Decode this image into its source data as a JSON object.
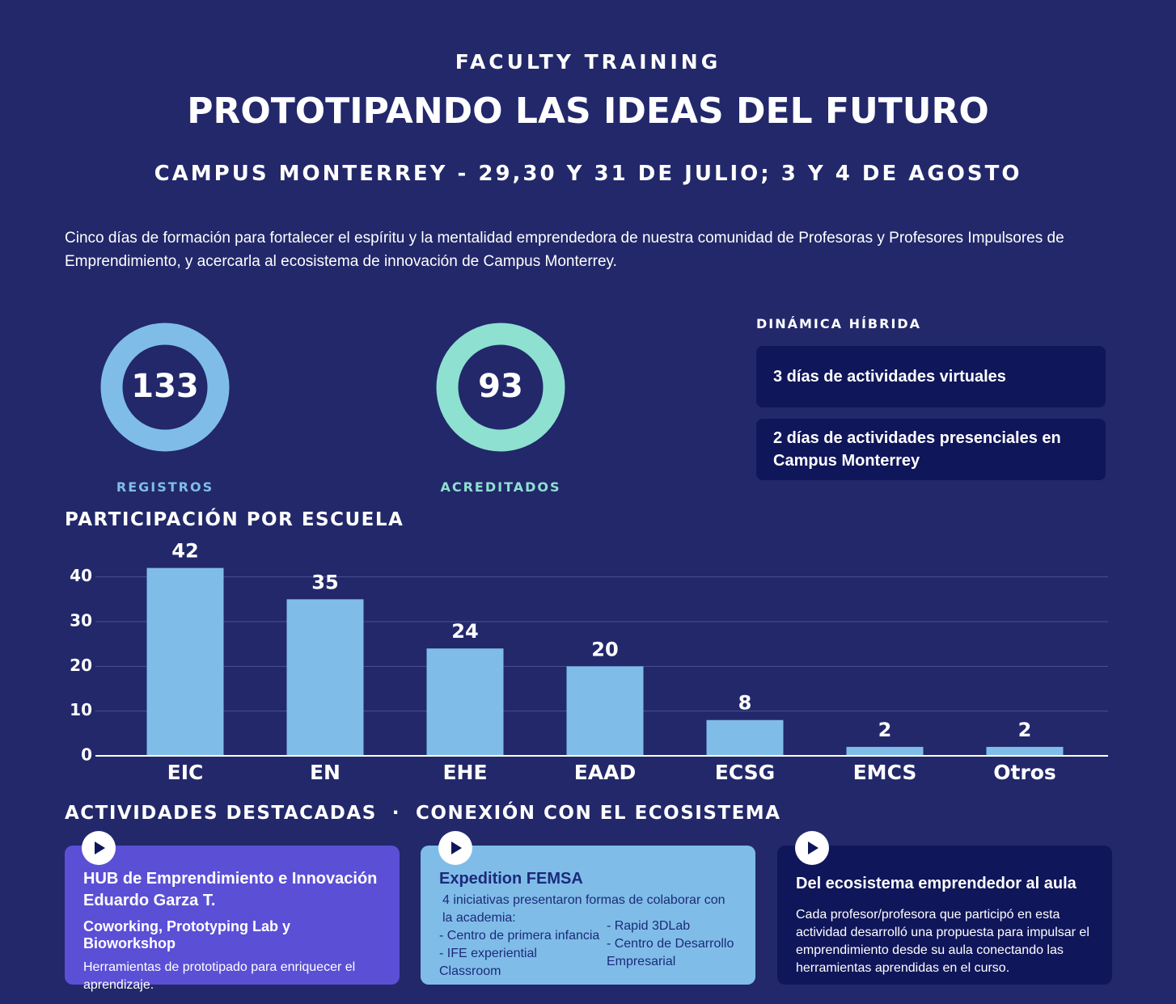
{
  "header": {
    "kicker": "FACULTY TRAINING",
    "title": "PROTOTIPANDO LAS IDEAS DEL FUTURO",
    "subtitle": "CAMPUS MONTERREY - 29,30 Y 31 DE JULIO; 3 Y 4 DE AGOSTO",
    "intro": "Cinco días de formación para fortalecer el espíritu y la mentalidad emprendedora de nuestra comunidad de Profesoras y Profesores Impulsores de Emprendimiento, y acercarla al ecosistema de innovación de Campus Monterrey."
  },
  "stats": [
    {
      "value": 133,
      "label": "REGISTROS",
      "color": "#7fbde8"
    },
    {
      "value": 93,
      "label": "ACREDITADOS",
      "color": "#8ee0d0"
    }
  ],
  "dynamics": {
    "title": "DINÁMICA HÍBRIDA",
    "items": [
      "3 días de actividades virtuales",
      "2 días de actividades presenciales en Campus Monterrey"
    ]
  },
  "chart_data": {
    "type": "bar",
    "title": "PARTICIPACIÓN POR ESCUELA",
    "categories": [
      "EIC",
      "EN",
      "EHE",
      "EAAD",
      "ECSG",
      "EMCS",
      "Otros"
    ],
    "values": [
      42,
      35,
      24,
      20,
      8,
      2,
      2
    ],
    "color": "#7fbde8",
    "ylim": [
      0,
      45
    ],
    "yticks": [
      0,
      10,
      20,
      30,
      40
    ],
    "grid": true
  },
  "activities": {
    "title": "ACTIVIDADES DESTACADAS  ·  CONEXIÓN CON EL ECOSISTEMA",
    "cards": [
      {
        "title": "HUB de Emprendimiento e Innovación Eduardo Garza T.",
        "subtitle": "Coworking, Prototyping Lab y Bioworkshop",
        "text": "Herramientas de prototipado para enriquecer el aprendizaje."
      },
      {
        "title": "Expedition FEMSA",
        "text": "4 iniciativas presentaron formas de colaborar con la academia:",
        "list_left": [
          "- Centro de primera infancia",
          "- IFE experiential Classroom"
        ],
        "list_right": [
          "- Rapid 3DLab",
          "- Centro de Desarrollo Empresarial"
        ]
      },
      {
        "title": "Del ecosistema emprendedor al aula",
        "text": "Cada profesor/profesora que participó en esta actividad desarrolló una propuesta para impulsar el emprendimiento desde su aula conectando las herramientas aprendidas en el curso."
      }
    ]
  }
}
